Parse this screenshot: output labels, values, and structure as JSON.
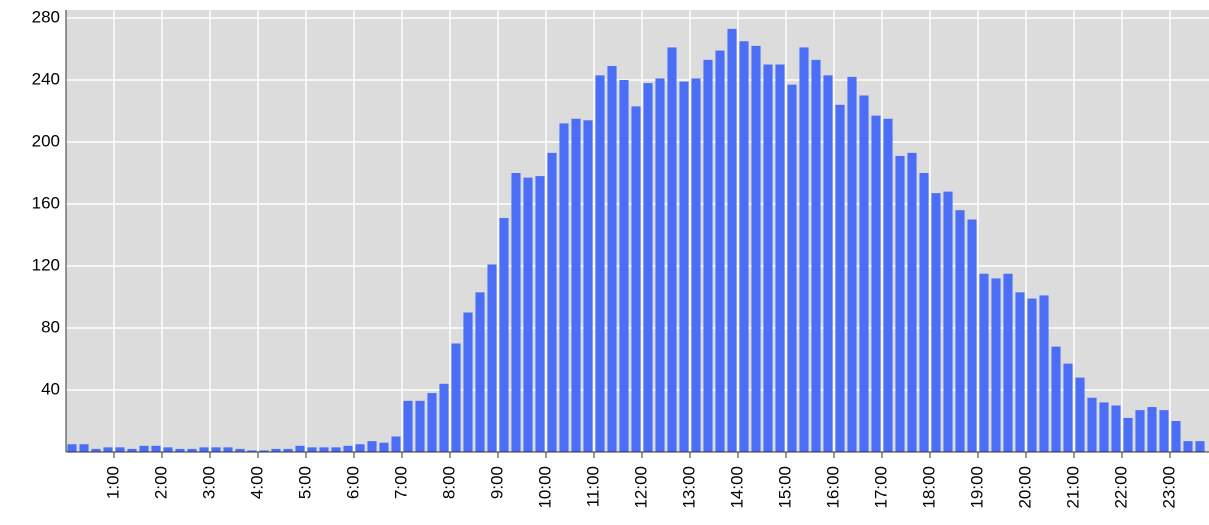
{
  "chart_data": {
    "type": "histogram",
    "bins": [
      0,
      0.25,
      0.5,
      0.75,
      1,
      1.25,
      1.5,
      1.75,
      2,
      2.25,
      2.5,
      2.75,
      3,
      3.25,
      3.5,
      3.75,
      4,
      4.25,
      4.5,
      4.75,
      5,
      5.25,
      5.5,
      5.75,
      6,
      6.25,
      6.5,
      6.75,
      7,
      7.25,
      7.5,
      7.75,
      8,
      8.25,
      8.5,
      8.75,
      9,
      9.25,
      9.5,
      9.75,
      10,
      10.25,
      10.5,
      10.75,
      11,
      11.25,
      11.5,
      11.75,
      12,
      12.25,
      12.5,
      12.75,
      13,
      13.25,
      13.5,
      13.75,
      14,
      14.25,
      14.5,
      14.75,
      15,
      15.25,
      15.5,
      15.75,
      16,
      16.25,
      16.5,
      16.75,
      17,
      17.25,
      17.5,
      17.75,
      18,
      18.25,
      18.5,
      18.75,
      19,
      19.25,
      19.5,
      19.75,
      20,
      20.25,
      20.5,
      20.75,
      21,
      21.25,
      21.5,
      21.75,
      22,
      22.25,
      22.5,
      22.75,
      23,
      23.25,
      23.5,
      23.75
    ],
    "values": [
      5,
      5,
      2,
      3,
      3,
      2,
      4,
      4,
      3,
      2,
      2,
      3,
      3,
      3,
      2,
      1,
      1,
      2,
      2,
      4,
      3,
      3,
      3,
      4,
      5,
      7,
      6,
      10,
      33,
      33,
      38,
      44,
      70,
      90,
      103,
      121,
      151,
      180,
      177,
      178,
      193,
      212,
      215,
      214,
      243,
      249,
      240,
      223,
      238,
      241,
      261,
      239,
      241,
      253,
      259,
      273,
      265,
      262,
      250,
      250,
      237,
      261,
      253,
      243,
      224,
      242,
      230,
      217,
      215,
      191,
      193,
      180,
      167,
      168,
      156,
      150,
      115,
      112,
      115,
      103,
      99,
      101,
      68,
      57,
      48,
      35,
      32,
      30,
      22,
      27,
      29,
      27,
      20,
      7,
      7
    ],
    "color": "#4a6ef5",
    "xlim": [
      0,
      23.8125
    ],
    "xticks": [
      {
        "value": 1,
        "label": "1:00"
      },
      {
        "value": 2,
        "label": "2:00"
      },
      {
        "value": 3,
        "label": "3:00"
      },
      {
        "value": 4,
        "label": "4:00"
      },
      {
        "value": 5,
        "label": "5:00"
      },
      {
        "value": 6,
        "label": "6:00"
      },
      {
        "value": 7,
        "label": "7:00"
      },
      {
        "value": 8,
        "label": "8:00"
      },
      {
        "value": 9,
        "label": "9:00"
      },
      {
        "value": 10,
        "label": "10:00"
      },
      {
        "value": 11,
        "label": "11:00"
      },
      {
        "value": 12,
        "label": "12:00"
      },
      {
        "value": 13,
        "label": "13:00"
      },
      {
        "value": 14,
        "label": "14:00"
      },
      {
        "value": 15,
        "label": "15:00"
      },
      {
        "value": 16,
        "label": "16:00"
      },
      {
        "value": 17,
        "label": "17:00"
      },
      {
        "value": 18,
        "label": "18:00"
      },
      {
        "value": 19,
        "label": "19:00"
      },
      {
        "value": 20,
        "label": "20:00"
      },
      {
        "value": 21,
        "label": "21:00"
      },
      {
        "value": 22,
        "label": "22:00"
      },
      {
        "value": 23,
        "label": "23:00"
      }
    ],
    "ylim": [
      0,
      280
    ],
    "yticks": [
      40,
      80,
      120,
      160,
      200,
      240,
      280
    ],
    "grid": true
  }
}
